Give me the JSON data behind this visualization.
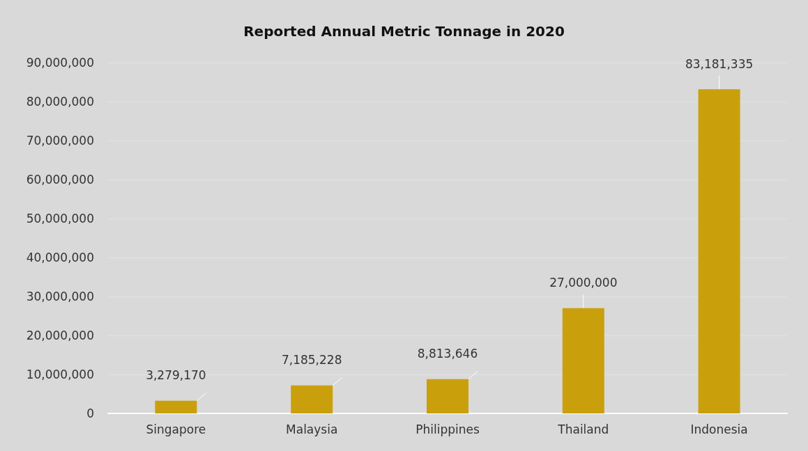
{
  "chart_data": {
    "type": "bar",
    "title": "Reported Annual Metric Tonnage in 2020",
    "categories": [
      "Singapore",
      "Malaysia",
      "Philippines",
      "Thailand",
      "Indonesia"
    ],
    "values": [
      3279170,
      7185228,
      8813646,
      27000000,
      83181335
    ],
    "value_labels": [
      "3,279,170",
      "7,185,228",
      "8,813,646",
      "27,000,000",
      "83,181,335"
    ],
    "color": "#c9a00c",
    "ylim": [
      0,
      90000000
    ],
    "yticks": [
      0,
      {
        "value": 10000000,
        "label": "10,000,000"
      },
      {
        "value": 20000000,
        "label": "20,000,000"
      },
      {
        "value": 30000000,
        "label": "30,000,000"
      },
      {
        "value": 40000000,
        "label": "40,000,000"
      },
      {
        "value": 50000000,
        "label": "50,000,000"
      },
      {
        "value": 60000000,
        "label": "60,000,000"
      },
      {
        "value": 70000000,
        "label": "70,000,000"
      },
      {
        "value": 80000000,
        "label": "80,000,000"
      },
      {
        "value": 90000000,
        "label": "90,000,000"
      }
    ],
    "grid": "y"
  }
}
